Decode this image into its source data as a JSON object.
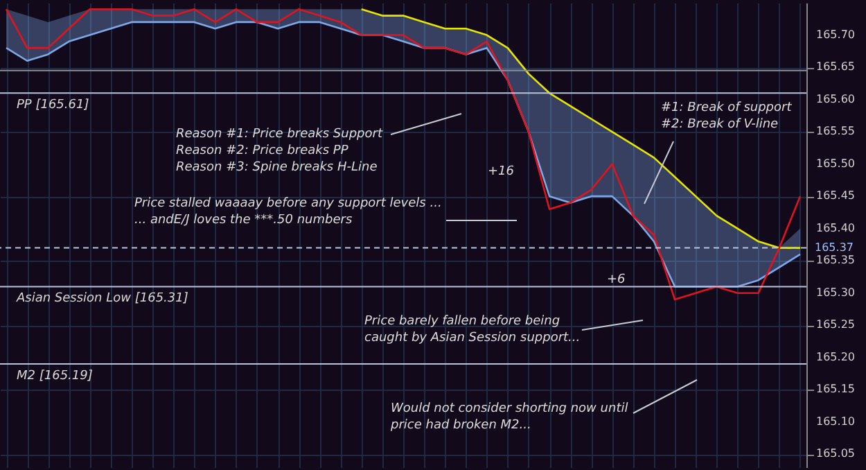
{
  "chart_data": {
    "type": "line",
    "categories": [
      null,
      null,
      null,
      null,
      null,
      null,
      null,
      null,
      null,
      null,
      null,
      null,
      null,
      null,
      null,
      null,
      null,
      null,
      null,
      null,
      null,
      null,
      null,
      null,
      null,
      null,
      null,
      null,
      null,
      null,
      null,
      null,
      null,
      null,
      null,
      null,
      null,
      null,
      null
    ],
    "series": [
      {
        "type": "line",
        "color": "#7fa8e8",
        "values": [
          165.68,
          165.66,
          165.67,
          165.69,
          165.7,
          165.71,
          165.72,
          165.72,
          165.72,
          165.72,
          165.71,
          165.72,
          165.72,
          165.71,
          165.72,
          165.72,
          165.71,
          165.7,
          165.7,
          165.69,
          165.68,
          165.68,
          165.67,
          165.68,
          165.63,
          165.55,
          165.45,
          165.44,
          165.45,
          165.45,
          165.42,
          165.38,
          165.31,
          165.31,
          165.31,
          165.31,
          165.32,
          165.34,
          165.36
        ],
        "lower": [
          165.68,
          165.66,
          165.67,
          165.69,
          165.7,
          165.71,
          165.72,
          165.72,
          165.72,
          165.72,
          165.71,
          165.72,
          165.72,
          165.71,
          165.72,
          165.72,
          165.71,
          165.7,
          165.7,
          165.69,
          165.68,
          165.68,
          165.67,
          165.68,
          165.63,
          165.55,
          165.45,
          165.44,
          165.45,
          165.45,
          165.42,
          165.38,
          165.31,
          165.31,
          165.31,
          165.31,
          165.32,
          165.34,
          165.36
        ],
        "upper": [
          165.74,
          165.73,
          165.72,
          165.73,
          165.74,
          165.74,
          165.74,
          165.74,
          165.74,
          165.74,
          165.74,
          165.74,
          165.74,
          165.74,
          165.74,
          165.74,
          165.74,
          165.74,
          165.73,
          165.73,
          165.72,
          165.71,
          165.71,
          165.7,
          165.68,
          165.64,
          165.61,
          165.59,
          165.57,
          165.55,
          165.53,
          165.51,
          165.48,
          165.45,
          165.42,
          165.4,
          165.38,
          165.37,
          165.4
        ]
      },
      {
        "type": "line",
        "color": "#e6e600",
        "values": [
          null,
          null,
          null,
          null,
          null,
          null,
          null,
          null,
          null,
          null,
          null,
          null,
          null,
          null,
          null,
          null,
          null,
          165.74,
          165.73,
          165.73,
          165.72,
          165.71,
          165.71,
          165.7,
          165.68,
          165.64,
          165.61,
          165.59,
          165.57,
          165.55,
          165.53,
          165.51,
          165.48,
          165.45,
          165.42,
          165.4,
          165.38,
          165.37,
          165.37
        ]
      },
      {
        "type": "line",
        "color": "#e0141e",
        "values": [
          165.74,
          165.68,
          165.68,
          165.71,
          165.74,
          165.74,
          165.74,
          165.73,
          165.73,
          165.74,
          165.72,
          165.74,
          165.72,
          165.72,
          165.74,
          165.73,
          165.72,
          165.7,
          165.7,
          165.7,
          165.68,
          165.68,
          165.67,
          165.69,
          165.63,
          165.55,
          165.43,
          165.44,
          165.46,
          165.5,
          165.42,
          165.39,
          165.29,
          165.3,
          165.31,
          165.3,
          165.3,
          165.37,
          165.45
        ]
      }
    ],
    "ylim": [
      165.03,
      165.75
    ],
    "yticks": [
      {
        "value": 165.05,
        "label": "165.05"
      },
      {
        "value": 165.1,
        "label": "165.10"
      },
      {
        "value": 165.15,
        "label": "165.15"
      },
      {
        "value": 165.2,
        "label": "165.20"
      },
      {
        "value": 165.25,
        "label": "165.25"
      },
      {
        "value": 165.3,
        "label": "165.30"
      },
      {
        "value": 165.35,
        "label": "165.35"
      },
      {
        "value": 165.4,
        "label": "165.40"
      },
      {
        "value": 165.45,
        "label": "165.45"
      },
      {
        "value": 165.5,
        "label": "165.50"
      },
      {
        "value": 165.55,
        "label": "165.55"
      },
      {
        "value": 165.6,
        "label": "165.60"
      },
      {
        "value": 165.65,
        "label": "165.65"
      },
      {
        "value": 165.7,
        "label": "165.70"
      }
    ],
    "ref_lines": [
      {
        "axis": "y",
        "value": 165.645,
        "label": null,
        "color": "#8a8f99",
        "line_style": "solid"
      },
      {
        "axis": "y",
        "value": 165.61,
        "label": "PP [165.61]",
        "color": "#b8c4dc",
        "line_style": "solid"
      },
      {
        "axis": "y",
        "value": 165.37,
        "label": "165.37",
        "color": "#b8c4dc",
        "line_style": "dashed"
      },
      {
        "axis": "y",
        "value": 165.31,
        "label": "Asian Session Low [165.31]",
        "color": "#b8c4dc",
        "line_style": "solid"
      },
      {
        "axis": "y",
        "value": 165.19,
        "label": "M2 [165.19]",
        "color": "#b8c4dc",
        "line_style": "solid"
      }
    ],
    "annotations": [
      "Reason #1: Price breaks Support\nReason #2: Price breaks PP\nReason #3: Spine breaks H-Line",
      "#1: Break of support\n#2: Break of V-line",
      "+16",
      "Price stalled waaaay before any support levels ...\n... andE/J loves the ***.50 numbers",
      "+6",
      "Price barely fallen before being\ncaught by Asian Session support...",
      "Would not consider shorting now until\nprice had broken M2..."
    ],
    "grid": true,
    "tick_labels": "y",
    "line_style": "solid",
    "marker": "none"
  }
}
